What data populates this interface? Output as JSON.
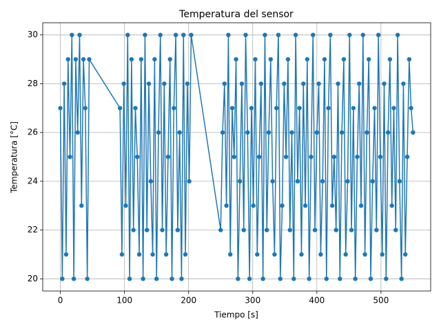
{
  "chart_data": {
    "type": "line",
    "title": "Temperatura del sensor",
    "xlabel": "Tiempo [s]",
    "ylabel": "Temperatura [°C]",
    "color": "#1f77b4",
    "grid": true,
    "marker": "o",
    "xlim": [
      -27.5,
      577.5
    ],
    "xticks": [
      0,
      100,
      200,
      300,
      400,
      500
    ],
    "ylim": [
      19.5,
      30.5
    ],
    "yticks": [
      20,
      22,
      24,
      26,
      28,
      30
    ],
    "x": [
      0,
      3,
      6,
      9,
      12,
      15,
      18,
      21,
      24,
      27,
      30,
      33,
      36,
      39,
      42,
      45,
      93,
      96,
      99,
      102,
      105,
      108,
      111,
      114,
      117,
      120,
      123,
      126,
      129,
      132,
      135,
      138,
      141,
      144,
      147,
      150,
      153,
      156,
      159,
      162,
      165,
      168,
      171,
      174,
      177,
      180,
      183,
      186,
      189,
      192,
      195,
      198,
      201,
      204,
      250,
      253,
      256,
      259,
      262,
      265,
      268,
      271,
      274,
      277,
      280,
      283,
      286,
      289,
      292,
      295,
      298,
      301,
      304,
      307,
      310,
      313,
      316,
      319,
      322,
      325,
      328,
      331,
      334,
      337,
      340,
      343,
      346,
      349,
      352,
      355,
      358,
      361,
      364,
      367,
      370,
      373,
      376,
      379,
      382,
      385,
      388,
      391,
      394,
      397,
      400,
      403,
      406,
      409,
      412,
      415,
      418,
      421,
      424,
      427,
      430,
      433,
      436,
      439,
      442,
      445,
      448,
      451,
      454,
      457,
      460,
      463,
      466,
      469,
      472,
      475,
      478,
      481,
      484,
      487,
      490,
      493,
      496,
      499,
      502,
      505,
      508,
      511,
      514,
      517,
      520,
      523,
      526,
      529,
      532,
      535,
      538,
      541,
      544,
      547,
      550
    ],
    "values": [
      27,
      20,
      28,
      21,
      29,
      25,
      30,
      20,
      29,
      26,
      30,
      23,
      29,
      27,
      20,
      29,
      27,
      21,
      28,
      23,
      30,
      20,
      29,
      22,
      27,
      25,
      21,
      29,
      20,
      30,
      22,
      28,
      24,
      21,
      29,
      20,
      26,
      30,
      22,
      28,
      21,
      25,
      29,
      20,
      27,
      30,
      22,
      26,
      20,
      30,
      21,
      28,
      24,
      30,
      22,
      26,
      28,
      23,
      30,
      21,
      27,
      25,
      29,
      20,
      24,
      28,
      22,
      30,
      26,
      20,
      27,
      23,
      29,
      21,
      25,
      28,
      20,
      30,
      22,
      26,
      29,
      24,
      21,
      27,
      30,
      20,
      23,
      28,
      25,
      29,
      22,
      26,
      20,
      30,
      24,
      27,
      21,
      28,
      23,
      29,
      20,
      25,
      30,
      22,
      26,
      28,
      21,
      24,
      29,
      20,
      27,
      30,
      23,
      25,
      22,
      28,
      20,
      26,
      29,
      21,
      24,
      30,
      22,
      27,
      20,
      25,
      28,
      23,
      30,
      21,
      26,
      29,
      20,
      24,
      27,
      22,
      30,
      25,
      21,
      28,
      20,
      26,
      29,
      23,
      27,
      22,
      30,
      24,
      20,
      28,
      21,
      25,
      29,
      27,
      26
    ]
  }
}
